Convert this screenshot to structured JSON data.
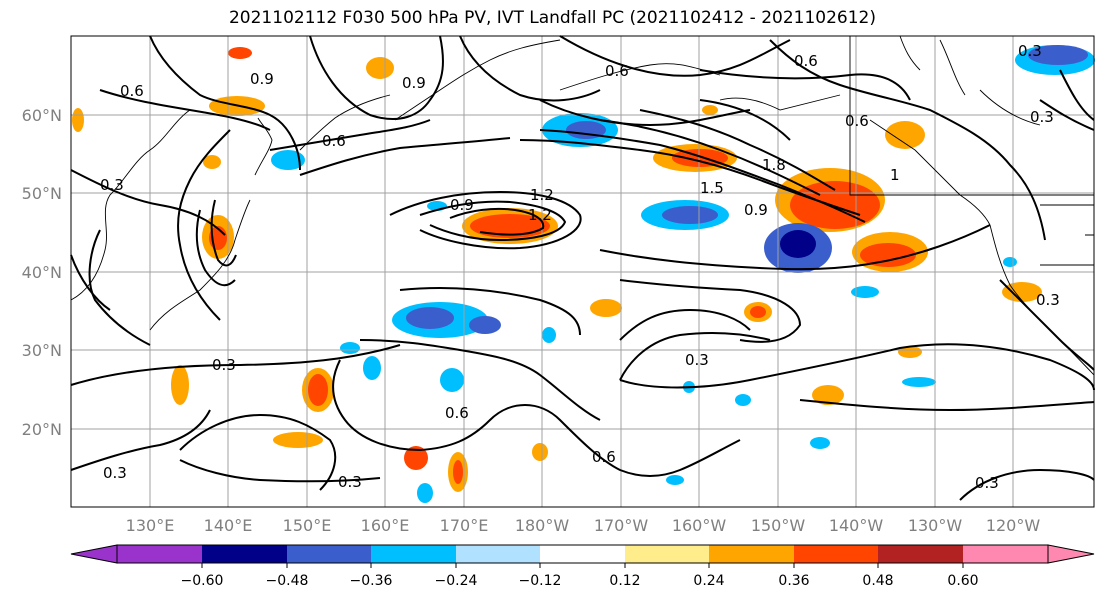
{
  "title": "2021102112 F030 500 hPa PV, IVT Landfall PC (2021102412 - 2021102612)",
  "lat_labels": [
    "60°N",
    "50°N",
    "40°N",
    "30°N",
    "20°N"
  ],
  "lon_labels": [
    "130°E",
    "140°E",
    "150°E",
    "160°E",
    "170°E",
    "180°W",
    "170°W",
    "160°W",
    "150°W",
    "140°W",
    "130°W",
    "120°W"
  ],
  "contour_labels": [
    "0.6",
    "0.9",
    "0.6",
    "0.9",
    "0.6",
    "0.6",
    "0.6",
    "0.3",
    "0.3",
    "0.9",
    "1.2",
    "1.2",
    "1.5",
    "1.8",
    "0.9",
    "0.3",
    "0.3",
    "0.6",
    "0.6",
    "0.3",
    "0.3",
    "0.3",
    "0.3",
    "1",
    "0.3"
  ],
  "colorbar": {
    "ticks": [
      "−0.60",
      "−0.48",
      "−0.36",
      "−0.24",
      "−0.12",
      "0.12",
      "0.24",
      "0.36",
      "0.48",
      "0.60"
    ],
    "colors": [
      "#9933cc",
      "#000088",
      "#3a5fcd",
      "#00bfff",
      "#b0e2ff",
      "#ffffff",
      "#ffec8b",
      "#ffa500",
      "#ff4500",
      "#b22222",
      "#ff88b0"
    ]
  }
}
